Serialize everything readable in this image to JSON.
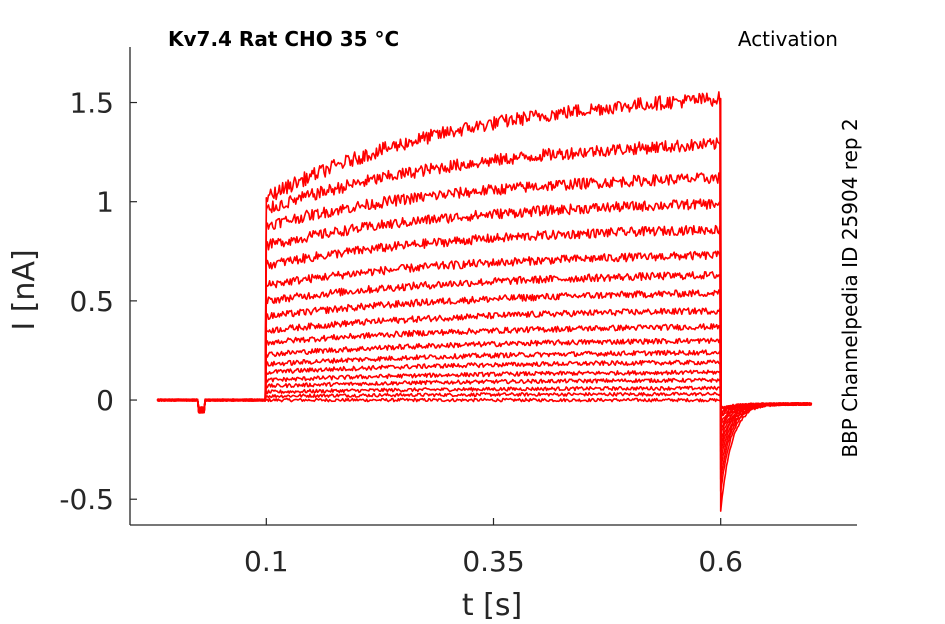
{
  "chart_data": {
    "type": "line",
    "title": "Kv7.4  Rat  CHO  35 °C",
    "protocol_label": "Activation",
    "source_label": "BBP Channelpedia ID 25904 rep 2",
    "xlabel": "t [s]",
    "ylabel": "I [nA]",
    "xlim": [
      -0.05,
      0.75
    ],
    "ylim": [
      -0.63,
      1.78
    ],
    "x_ticks": [
      0.1,
      0.35,
      0.6
    ],
    "x_tick_labels": [
      "0.1",
      "0.35",
      "0.6"
    ],
    "y_ticks": [
      -0.5,
      0,
      0.5,
      1,
      1.5
    ],
    "y_tick_labels": [
      "-0.5",
      "0",
      "0.5",
      "1",
      "1.5"
    ],
    "grid": false,
    "trace_color": "#ff0000",
    "pulse_start": 0.1,
    "pulse_end": 0.6,
    "trace_x_range": [
      -0.02,
      0.7
    ],
    "series": [
      {
        "onset": 0.0,
        "end": 0.0,
        "tail": -0.04
      },
      {
        "onset": 0.02,
        "end": 0.03,
        "tail": -0.05
      },
      {
        "onset": 0.04,
        "end": 0.06,
        "tail": -0.06
      },
      {
        "onset": 0.07,
        "end": 0.1,
        "tail": -0.07
      },
      {
        "onset": 0.1,
        "end": 0.14,
        "tail": -0.08
      },
      {
        "onset": 0.14,
        "end": 0.19,
        "tail": -0.09
      },
      {
        "onset": 0.18,
        "end": 0.24,
        "tail": -0.11
      },
      {
        "onset": 0.23,
        "end": 0.3,
        "tail": -0.13
      },
      {
        "onset": 0.29,
        "end": 0.37,
        "tail": -0.15
      },
      {
        "onset": 0.35,
        "end": 0.45,
        "tail": -0.17
      },
      {
        "onset": 0.42,
        "end": 0.54,
        "tail": -0.2
      },
      {
        "onset": 0.5,
        "end": 0.63,
        "tail": -0.23
      },
      {
        "onset": 0.58,
        "end": 0.73,
        "tail": -0.26
      },
      {
        "onset": 0.68,
        "end": 0.86,
        "tail": -0.3
      },
      {
        "onset": 0.78,
        "end": 0.99,
        "tail": -0.35
      },
      {
        "onset": 0.88,
        "end": 1.12,
        "tail": -0.4
      },
      {
        "onset": 0.96,
        "end": 1.29,
        "tail": -0.46
      },
      {
        "onset": 1.02,
        "end": 1.52,
        "tail": -0.56
      }
    ]
  }
}
